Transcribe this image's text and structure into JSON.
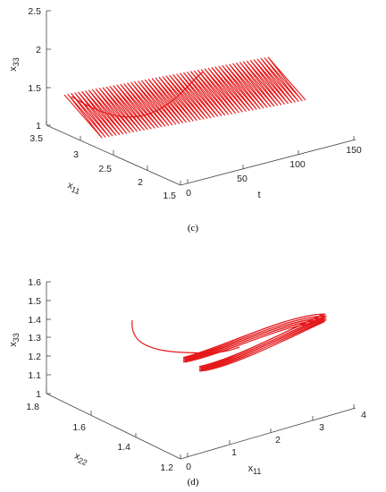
{
  "chart_data": [
    {
      "type": "line3d",
      "panel_label": "(c)",
      "series_color": "#e41a1c",
      "axes": {
        "t": {
          "label": "t",
          "ticks": [
            "0",
            "50",
            "100",
            "150"
          ],
          "range": [
            0,
            150
          ]
        },
        "x11": {
          "label": "x",
          "label_sub": "11",
          "ticks": [
            "1.5",
            "2",
            "2.5",
            "3",
            "3.5"
          ],
          "range": [
            1.5,
            3.5
          ]
        },
        "x33": {
          "label": "x",
          "label_sub": "33",
          "ticks": [
            "1",
            "1.5",
            "2",
            "2.5"
          ],
          "range": [
            1,
            2.5
          ]
        }
      },
      "series": [
        {
          "t_range": [
            0,
            120
          ],
          "x11_range": [
            2.1,
            3.1
          ],
          "x33_range": [
            1.2,
            1.8
          ],
          "oscillations": 58,
          "initial_point": {
            "t": 0,
            "x11": 3.0,
            "x33": 1.4
          }
        }
      ]
    },
    {
      "type": "line3d",
      "panel_label": "(d)",
      "series_color": "#e41a1c",
      "axes": {
        "x11": {
          "label": "x",
          "label_sub": "11",
          "ticks": [
            "0",
            "1",
            "2",
            "3",
            "4"
          ],
          "range": [
            0,
            4
          ]
        },
        "x22": {
          "label": "x",
          "label_sub": "22",
          "ticks": [
            "1.2",
            "1.4",
            "1.6",
            "1.8"
          ],
          "range": [
            1.2,
            1.8
          ]
        },
        "x33": {
          "label": "x",
          "label_sub": "33",
          "ticks": [
            "1",
            "1.1",
            "1.2",
            "1.3",
            "1.4",
            "1.5",
            "1.6"
          ],
          "range": [
            1,
            1.6
          ]
        }
      },
      "series": [
        {
          "start_point": {
            "x11": 1.0,
            "x22": 1.7,
            "x33": 1.4
          },
          "attractor_x11_range": [
            2.0,
            3.6
          ],
          "attractor_x22_range": [
            1.35,
            1.55
          ],
          "attractor_x33_range": [
            1.2,
            1.4
          ]
        }
      ]
    }
  ]
}
